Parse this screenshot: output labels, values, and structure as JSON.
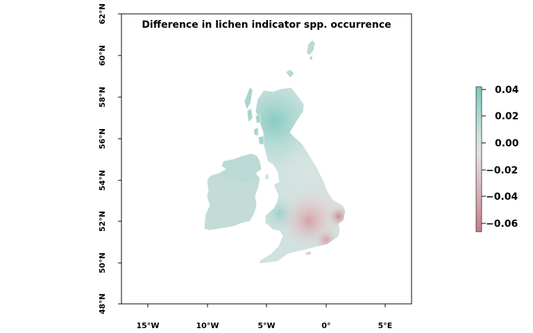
{
  "map": {
    "title": "Difference in lichen indicator spp. occurrence",
    "lon_range": [
      -17,
      7
    ],
    "lat_range": [
      48,
      62
    ],
    "lat_ticks": [
      {
        "value": 62,
        "label": "62°N"
      },
      {
        "value": 60,
        "label": "60°N"
      },
      {
        "value": 58,
        "label": "58°N"
      },
      {
        "value": 56,
        "label": "56°N"
      },
      {
        "value": 54,
        "label": "54°N"
      },
      {
        "value": 52,
        "label": "52°N"
      },
      {
        "value": 50,
        "label": "50°N"
      },
      {
        "value": 48,
        "label": "48°N"
      }
    ],
    "lon_ticks": [
      {
        "value": -15,
        "label": "15°W"
      },
      {
        "value": -10,
        "label": "10°W"
      },
      {
        "value": -5,
        "label": "5°W"
      },
      {
        "value": 0,
        "label": "0°"
      },
      {
        "value": 5,
        "label": "5°E"
      }
    ]
  },
  "legend": {
    "range": [
      -0.07,
      0.045
    ],
    "ticks": [
      "0.04",
      "0.02",
      "0.00",
      "−0.02",
      "−0.04",
      "−0.06"
    ],
    "tick_values": [
      0.04,
      0.02,
      0.0,
      -0.02,
      -0.04,
      -0.06
    ],
    "colors": {
      "high": "#79c9bf",
      "mid": "#e2e2e2",
      "low": "#c97c86"
    }
  }
}
